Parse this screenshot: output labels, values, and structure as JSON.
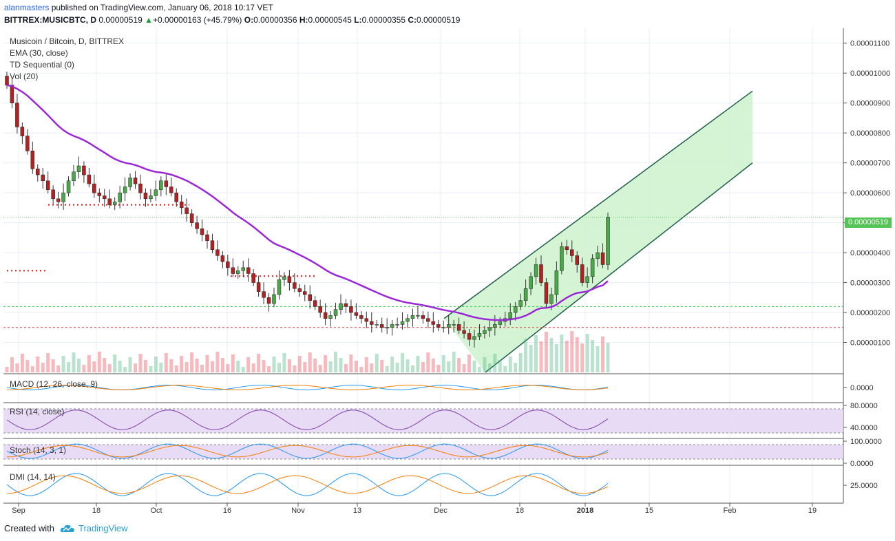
{
  "header": {
    "author": "alanmasters",
    "published": "published on TradingView.com, January 06, 2018 10:17 VET",
    "symbol": "BITTREX:MUSICBTC, D",
    "last": "0.00000519",
    "change_icon": "triangle-up-icon",
    "change": "+0.00000163 (+45.79%)",
    "o_label": "O:",
    "o": "0.00000356",
    "h_label": "H:",
    "h": "0.00000545",
    "l_label": "L:",
    "l": "0.00000355",
    "c_label": "C:",
    "c": "0.00000519"
  },
  "legend": {
    "title": "Musicoin / Bitcoin, D, BITTREX",
    "ema": "EMA (30, close)",
    "td": "TD Sequential (0)",
    "vol": "Vol (20)",
    "macd": "MACD (12, 26, close, 9)",
    "rsi": "RSI (14, close)",
    "stoch": "Stoch (14, 3, 1)",
    "dmi": "DMI (14, 14)"
  },
  "price_badge": "0.00000519",
  "footer": {
    "created_with": "Created with",
    "brand": "TradingView",
    "logo_icon": "tradingview-cloud-icon"
  },
  "colors": {
    "up": "#53b987",
    "down": "#eb4d5c",
    "ema": "#9b27d8",
    "channel": "#1f5d4a",
    "channel_fill": "#ccf2cc",
    "red_support": "#e53935",
    "green_support": "#2ecc40",
    "price_badge": "#54c554",
    "rsi_band": "#e6d7f5",
    "td_green": "#1a9c1a",
    "td_red": "#d32f2f"
  },
  "chart_data": [
    {
      "type": "candlestick",
      "title": "Musicoin / Bitcoin, D, BITTREX",
      "x_labels": [
        "Sep",
        "18",
        "Oct",
        "16",
        "Nov",
        "13",
        "Dec",
        "18",
        "2018",
        "15",
        "Feb",
        "19"
      ],
      "y_ticks": [
        "0.00001100",
        "0.00001000",
        "0.00000900",
        "0.00000800",
        "0.00000700",
        "0.00000600",
        "0.00000500",
        "0.00000400",
        "0.00000300",
        "0.00000200",
        "0.00000100"
      ],
      "y_range": [
        0.0,
        1.15e-05
      ],
      "close_series": [
        9.6,
        9.0,
        8.2,
        7.9,
        7.4,
        6.8,
        6.6,
        6.4,
        6.1,
        5.8,
        5.7,
        6.0,
        6.4,
        6.7,
        6.9,
        6.6,
        6.3,
        6.0,
        5.9,
        5.8,
        5.6,
        5.7,
        6.0,
        6.2,
        6.5,
        6.3,
        6.0,
        5.8,
        5.9,
        6.1,
        6.4,
        6.2,
        6.0,
        5.7,
        5.5,
        5.3,
        5.0,
        4.8,
        4.6,
        4.4,
        4.1,
        3.9,
        3.7,
        3.5,
        3.3,
        3.4,
        3.5,
        3.3,
        3.0,
        2.7,
        2.5,
        2.3,
        2.6,
        3.1,
        3.2,
        3.0,
        2.8,
        2.7,
        2.6,
        2.4,
        2.2,
        2.0,
        1.8,
        1.9,
        2.1,
        2.3,
        2.2,
        2.0,
        1.9,
        1.8,
        1.7,
        1.6,
        1.6,
        1.5,
        1.5,
        1.6,
        1.6,
        1.7,
        1.8,
        1.9,
        1.9,
        1.8,
        1.7,
        1.6,
        1.5,
        1.5,
        1.6,
        1.6,
        1.4,
        1.3,
        1.1,
        1.2,
        1.3,
        1.4,
        1.5,
        1.6,
        1.7,
        1.8,
        2.0,
        2.2,
        2.4,
        2.8,
        3.2,
        3.6,
        3.0,
        2.3,
        2.6,
        3.4,
        4.2,
        4.1,
        3.9,
        3.6,
        3.0,
        3.2,
        3.8,
        4.0,
        3.6,
        5.19
      ],
      "ema30_label": "EMA (30, close)",
      "red_support_levels": [
        3.4e-06,
        5.6e-06,
        1.5e-06
      ],
      "green_support_level": 2.2e-06,
      "last_price": 5.19e-06,
      "channel": {
        "upper_start": 1.8e-06,
        "upper_end": 9.4e-06,
        "lower_start": 0.0,
        "lower_end": 7e-06
      }
    },
    {
      "type": "line",
      "title": "MACD (12, 26, close, 9)",
      "y_ticks": [
        "0.0000"
      ]
    },
    {
      "type": "line",
      "title": "RSI (14, close)",
      "y_ticks": [
        "80.0000",
        "40.0000"
      ]
    },
    {
      "type": "line",
      "title": "Stoch (14, 3, 1)",
      "y_ticks": [
        "100.0000",
        "0.0000"
      ]
    },
    {
      "type": "line",
      "title": "DMI (14, 14)",
      "y_ticks": [
        "25.0000"
      ]
    }
  ]
}
